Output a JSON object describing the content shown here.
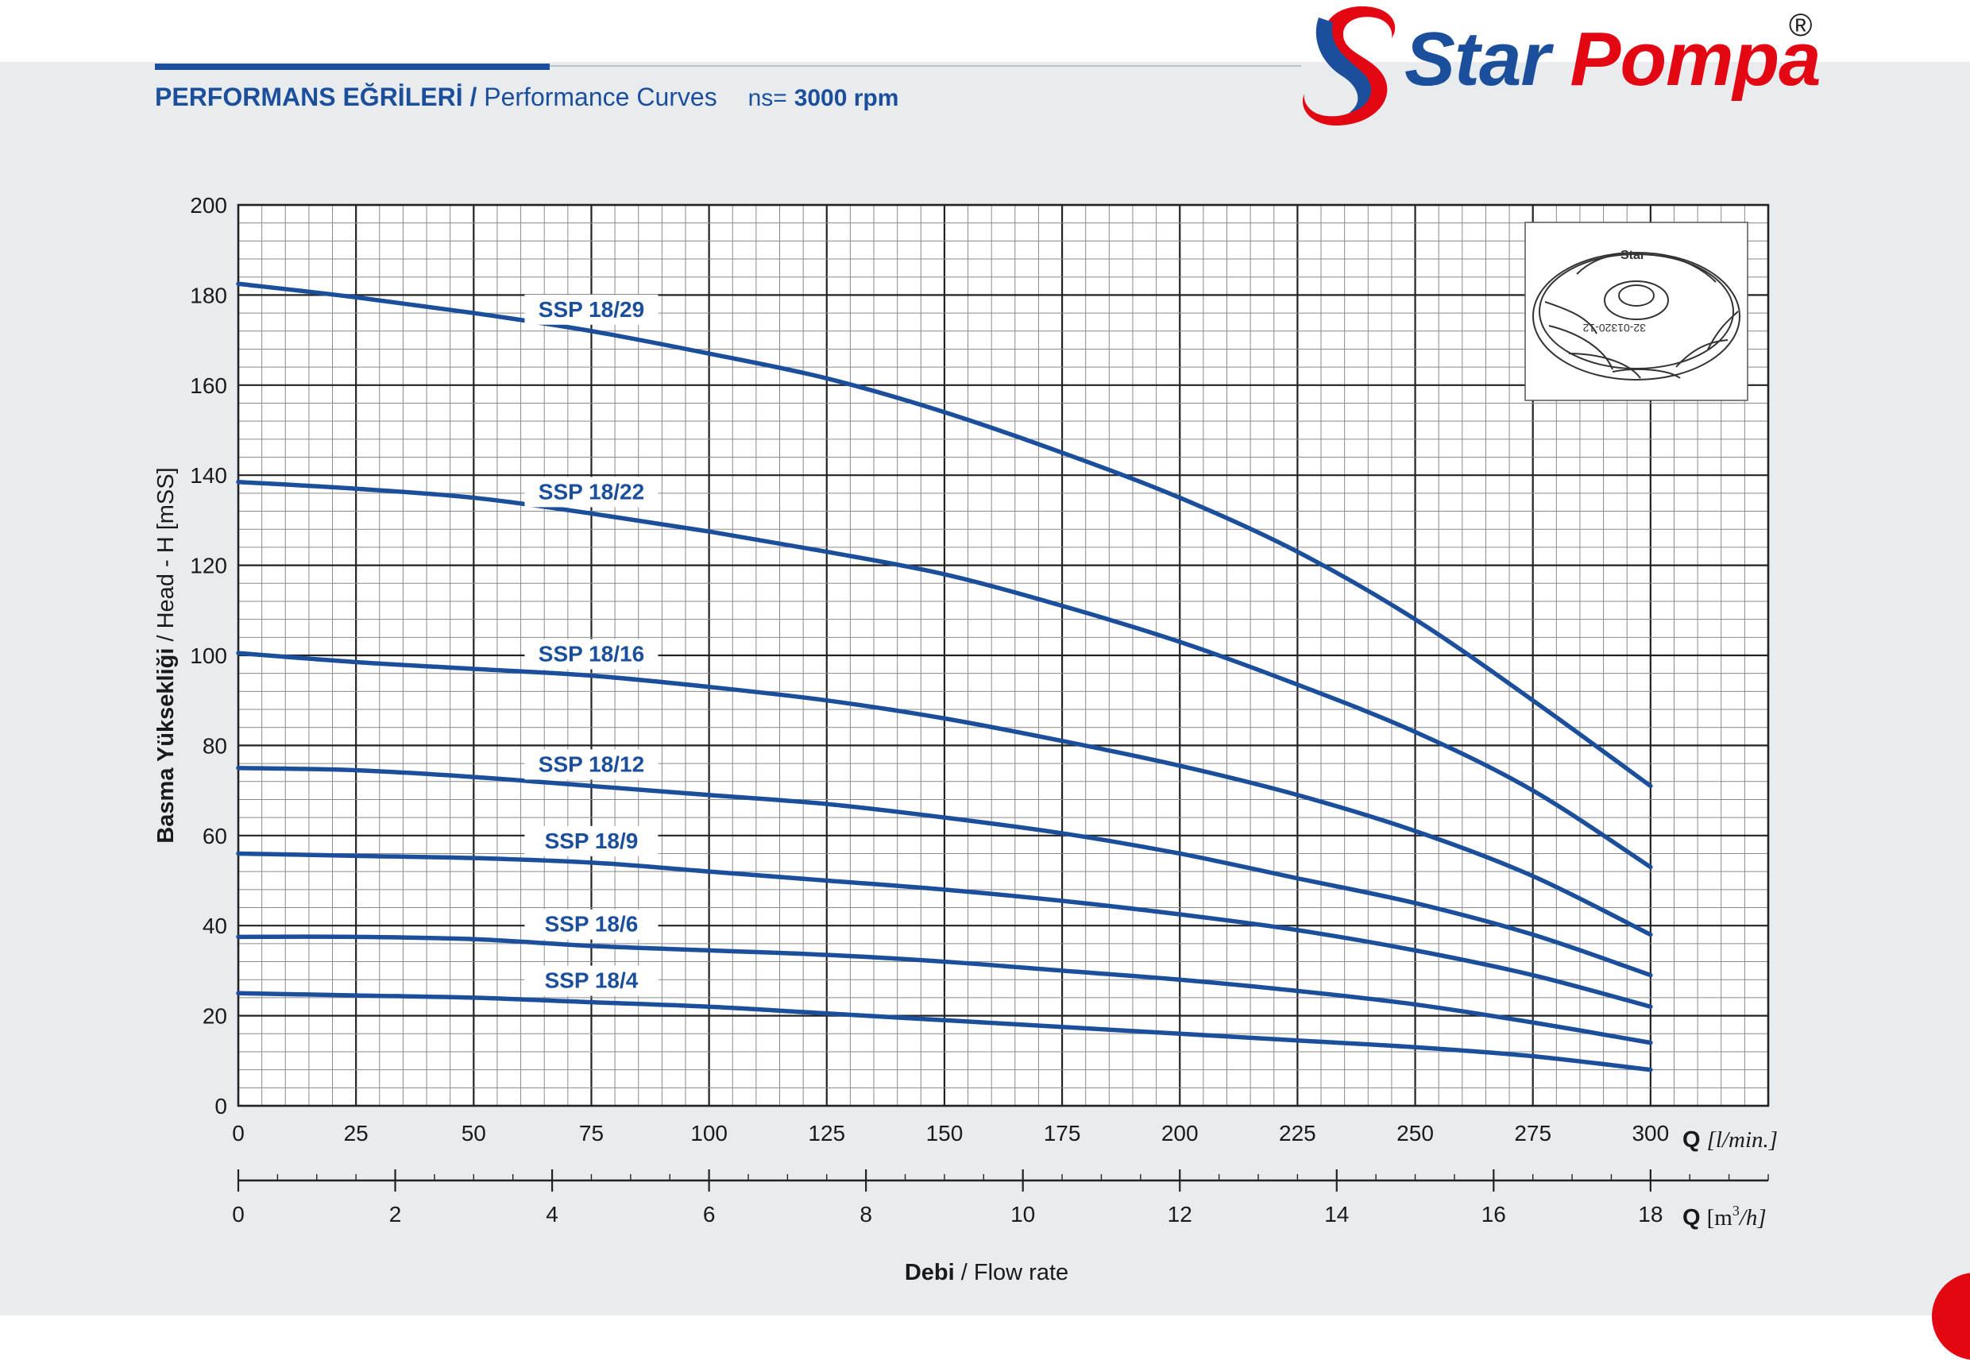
{
  "header": {
    "title_tr": "PERFORMANS EĞRİLERİ",
    "separator": "/",
    "title_en": "Performance Curves",
    "speed_prefix": "ns=",
    "speed_value": "3000 rpm"
  },
  "brand": {
    "name_part1": "Star",
    "name_part2": "Pompa",
    "registered": "®",
    "primary_color": "#1b4f9c",
    "accent_color": "#e30613"
  },
  "impeller_image": {
    "icon": "impeller-icon",
    "brand_text": "Star",
    "part_number": "32-01320-12"
  },
  "chart_data": {
    "type": "line",
    "title": "",
    "ylabel": "Basma Yüksekliği / Head - H [mSS]",
    "ylabel_parts": {
      "bold": "Basma Yüksekliği",
      "normal": "/ Head - H [mSS]"
    },
    "ylim": [
      0,
      200
    ],
    "yticks": [
      0,
      20,
      40,
      60,
      80,
      100,
      120,
      140,
      160,
      180,
      200
    ],
    "xlabel_primary": "Q [l/min.]",
    "xlabel_primary_parts": {
      "q": "Q",
      "unit": "[l/min.]"
    },
    "xlim": [
      0,
      325
    ],
    "xticks": [
      0,
      25,
      50,
      75,
      100,
      125,
      150,
      175,
      200,
      225,
      250,
      275,
      300
    ],
    "xlabel_secondary": "Q [m3/h]",
    "xlabel_secondary_parts": {
      "q": "Q",
      "open": "[m",
      "sup": "3",
      "close": "/h]"
    },
    "secondary_xlim": [
      0,
      19.5
    ],
    "secondary_xticks": [
      0,
      2,
      4,
      6,
      8,
      10,
      12,
      14,
      16,
      18
    ],
    "bottom_label_parts": {
      "bold": "Debi",
      "normal": "/ Flow rate"
    },
    "grid": true,
    "line_color": "#1b4f9c",
    "x": [
      0,
      25,
      50,
      75,
      100,
      125,
      150,
      175,
      200,
      225,
      250,
      275,
      300
    ],
    "series": [
      {
        "name": "SSP 18/29",
        "values": [
          182.5,
          179.5,
          176,
          172,
          167,
          161.5,
          154,
          145,
          135,
          123,
          108,
          90,
          71
        ]
      },
      {
        "name": "SSP 18/22",
        "values": [
          138.5,
          137,
          135,
          131.5,
          127.5,
          123,
          118,
          111,
          103,
          93.5,
          83,
          70,
          53
        ]
      },
      {
        "name": "SSP 18/16",
        "values": [
          100.5,
          98.5,
          97,
          95.5,
          93,
          90,
          86,
          81,
          75.5,
          69,
          61,
          51,
          38
        ]
      },
      {
        "name": "SSP 18/12",
        "values": [
          75,
          74.5,
          73,
          71,
          69,
          67,
          64,
          60.5,
          56,
          50.5,
          45,
          38,
          29
        ]
      },
      {
        "name": "SSP 18/9",
        "values": [
          56,
          55.5,
          55,
          54,
          52,
          50,
          48,
          45.5,
          42.5,
          39,
          34.5,
          29,
          22
        ]
      },
      {
        "name": "SSP 18/6",
        "values": [
          37.5,
          37.5,
          37,
          35.5,
          34.5,
          33.5,
          32,
          30,
          28,
          25.5,
          22.5,
          18.5,
          14
        ]
      },
      {
        "name": "SSP 18/4",
        "values": [
          25,
          24.5,
          24,
          23,
          22,
          20.5,
          19,
          17.5,
          16,
          14.5,
          13,
          11,
          8
        ]
      }
    ]
  }
}
